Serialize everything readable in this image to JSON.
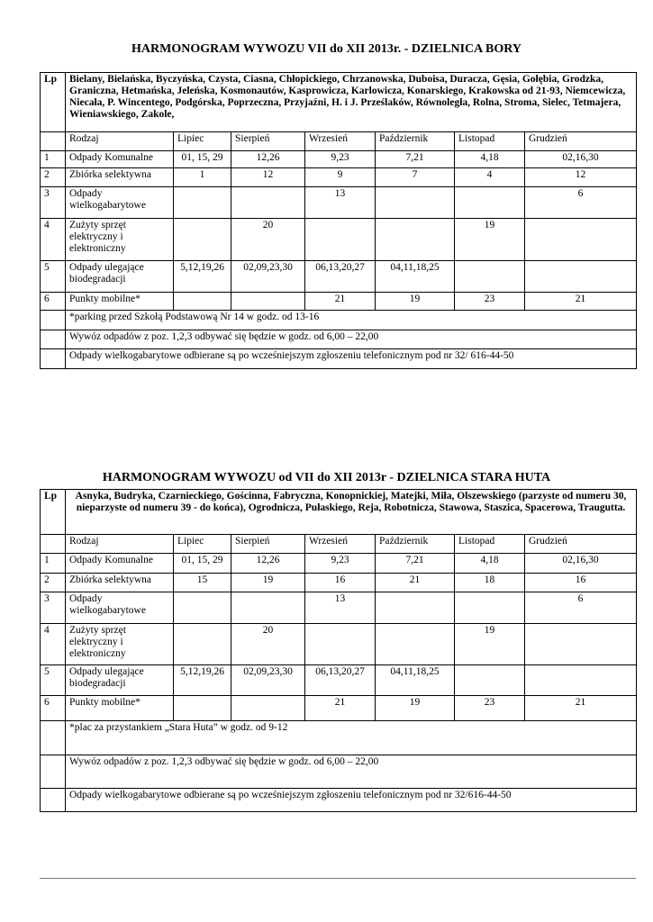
{
  "tables": [
    {
      "title": "HARMONOGRAM WYWOZU VII do XII 2013r. - DZIELNICA BORY",
      "lp": "Lp",
      "streets": "Bielany, Bielańska, Byczyńska, Czysta, Ciasna, Chłopickiego, Chrzanowska, Duboisa,  Duracza, Gęsia, Gołębia, Grodzka, Graniczna, Hetmańska, Jeleńska, Kosmonautów, Kasprowicza, Karlowicza, Konarskiego, Krakowska od 21-93, Niemcewicza, Niecała, P. Wincentego, Podgórska, Poprzeczna, Przyjaźni, H. i J. Prześlaków,  Równoległa, Rolna, Stroma, Sielec, Tetmajera, Wieniawskiego, Zakole,",
      "headers": [
        "Rodzaj",
        "Lipiec",
        "Sierpień",
        "Wrzesień",
        "Październik",
        "Listopad",
        "Grudzień"
      ],
      "rows": [
        [
          "1",
          "Odpady Komunalne",
          "01, 15, 29",
          "12,26",
          "9,23",
          "7,21",
          "4,18",
          "02,16,30"
        ],
        [
          "2",
          "Zbiórka selektywna",
          "1",
          "12",
          "9",
          "7",
          "4",
          "12"
        ],
        [
          "3",
          "Odpady wielkogabarytowe",
          "",
          "",
          "13",
          "",
          "",
          "6"
        ],
        [
          "4",
          "Zużyty sprzęt elektryczny i elektroniczny",
          "",
          "20",
          "",
          "",
          "19",
          ""
        ],
        [
          "5",
          "Odpady ulegające biodegradacji",
          "5,12,19,26",
          "02,09,23,30",
          "06,13,20,27",
          "04,11,18,25",
          "",
          ""
        ],
        [
          "6",
          "Punkty mobilne*",
          "",
          "",
          "21",
          "19",
          "23",
          "21"
        ]
      ],
      "notes": [
        "*parking przed Szkołą Podstawową Nr 14 w godz. od 13-16",
        "Wywóz odpadów z poz. 1,2,3 odbywać się będzie w godz. od  6,00 – 22,00",
        "Odpady wielkogabarytowe  odbierane są po wcześniejszym zgłoszeniu telefonicznym pod nr 32/ 616-44-50"
      ]
    },
    {
      "title": "HARMONOGRAM WYWOZU od VII do XII 2013r -  DZIELNICA STARA HUTA",
      "lp": "Lp",
      "streets": "Asnyka, Budryka, Czarnieckiego, Gościnna, Fabryczna, Konopnickiej, Matejki, Miła, Olszewskiego (parzyste od numeru 30, nieparzyste od numeru 39  - do końca), Ogrodnicza, Pułaskiego, Reja, Robotnicza, Stawowa, Staszica, Spacerowa, Traugutta.",
      "headers": [
        "Rodzaj",
        "Lipiec",
        "Sierpień",
        "Wrzesień",
        "Październik",
        "Listopad",
        "Grudzień"
      ],
      "rows": [
        [
          "1",
          "Odpady Komunalne",
          "01, 15, 29",
          "12,26",
          "9,23",
          "7,21",
          "4,18",
          "02,16,30"
        ],
        [
          "2",
          "Zbiórka selektywna",
          "15",
          "19",
          "16",
          "21",
          "18",
          "16"
        ],
        [
          "3",
          "Odpady wielkogabarytowe",
          "",
          "",
          "13",
          "",
          "",
          "6"
        ],
        [
          "4",
          "Zużyty sprzęt elektryczny i elektroniczny",
          "",
          "20",
          "",
          "",
          "19",
          ""
        ],
        [
          "5",
          "Odpady ulegające biodegradacji",
          "5,12,19,26",
          "02,09,23,30",
          "06,13,20,27",
          "04,11,18,25",
          "",
          ""
        ],
        [
          "6",
          "Punkty mobilne*",
          "",
          "",
          "21",
          "19",
          "23",
          "21"
        ]
      ],
      "notes": [
        "*plac za przystankiem „Stara Huta” w godz. od  9-12",
        "Wywóz odpadów z poz. 1,2,3 odbywać się będzie w godz. od  6,00 – 22,00",
        "Odpady wielkogabarytowe  odbierane są po wcześniejszym zgłoszeniu telefonicznym pod nr 32/616-44-50"
      ]
    }
  ]
}
